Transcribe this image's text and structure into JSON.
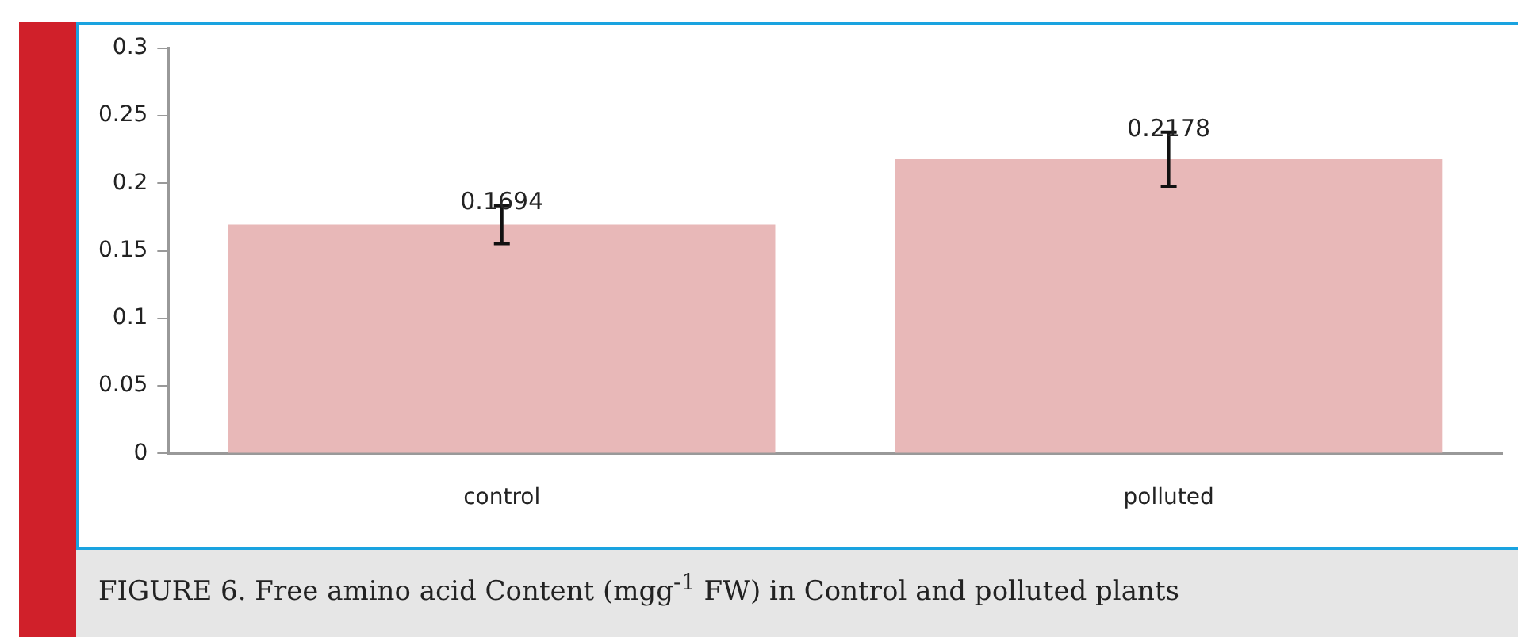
{
  "chart_data": {
    "type": "bar",
    "categories": [
      "control",
      "polluted"
    ],
    "values": [
      0.1694,
      0.2178
    ],
    "errors": [
      0.014,
      0.02
    ],
    "color": "#e8b8b8",
    "data_labels": true,
    "ylim": [
      0,
      0.3
    ],
    "yticks": [
      0,
      0.05,
      0.1,
      0.15,
      0.2,
      0.25,
      0.3
    ],
    "grid": false,
    "legend": false,
    "annotations": [
      "FIGURE 6. Free amino acid Content (mgg$^{-1}$ FW) in Control and polluted plants"
    ]
  }
}
